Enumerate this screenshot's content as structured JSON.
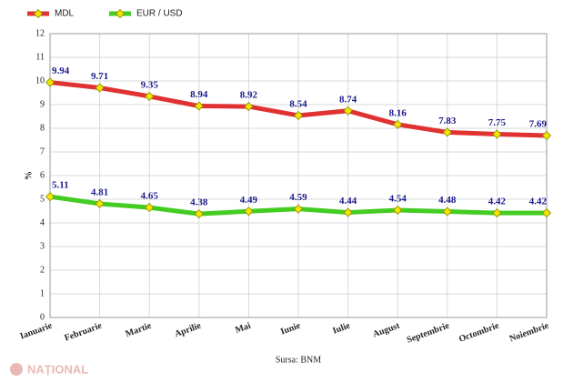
{
  "chart_data": {
    "type": "line",
    "categories": [
      "Ianuarie",
      "Februarie",
      "Martie",
      "Aprilie",
      "Mai",
      "Iunie",
      "Iulie",
      "August",
      "Septembrie",
      "Octombrie",
      "Noiembrie"
    ],
    "series": [
      {
        "name": "MDL",
        "color": "#e03232",
        "values": [
          9.94,
          9.71,
          9.35,
          8.94,
          8.92,
          8.54,
          8.74,
          8.16,
          7.83,
          7.75,
          7.69
        ]
      },
      {
        "name": "EUR / USD",
        "color": "#44cc22",
        "values": [
          5.11,
          4.81,
          4.65,
          4.38,
          4.49,
          4.59,
          4.44,
          4.54,
          4.48,
          4.42,
          4.42
        ]
      }
    ],
    "y_label": "%",
    "source": "Sursa: BNM",
    "watermark": "NAȚIONAL",
    "ylim": [
      0,
      12
    ],
    "yticks": [
      0,
      1,
      2,
      3,
      4,
      5,
      6,
      7,
      8,
      9,
      10,
      11,
      12
    ],
    "grid": true,
    "marker_color": "#f2e400"
  }
}
